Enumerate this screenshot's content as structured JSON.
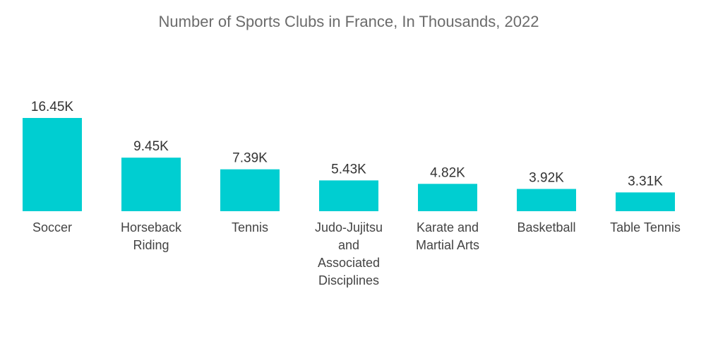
{
  "chart_data": {
    "type": "bar",
    "title": "Number of Sports Clubs in France, In Thousands, 2022",
    "categories": [
      "Soccer",
      "Horseback Riding",
      "Tennis",
      "Judo-Jujitsu and Associated Disciplines",
      "Karate and Martial Arts",
      "Basketball",
      "Table Tennis"
    ],
    "category_lines": [
      [
        "Soccer"
      ],
      [
        "Horseback",
        "Riding"
      ],
      [
        "Tennis"
      ],
      [
        "Judo-Jujitsu",
        "and",
        "Associated",
        "Disciplines"
      ],
      [
        "Karate and",
        "Martial Arts"
      ],
      [
        "Basketball"
      ],
      [
        "Table Tennis"
      ]
    ],
    "values": [
      16.45,
      9.45,
      7.39,
      5.43,
      4.82,
      3.92,
      3.31
    ],
    "value_labels": [
      "16.45K",
      "9.45K",
      "7.39K",
      "5.43K",
      "4.82K",
      "3.92K",
      "3.31K"
    ],
    "xlabel": "",
    "ylabel": "",
    "ylim": [
      0,
      16.45
    ],
    "grid": false,
    "legend": "none",
    "bar_color": "#00ced1"
  }
}
